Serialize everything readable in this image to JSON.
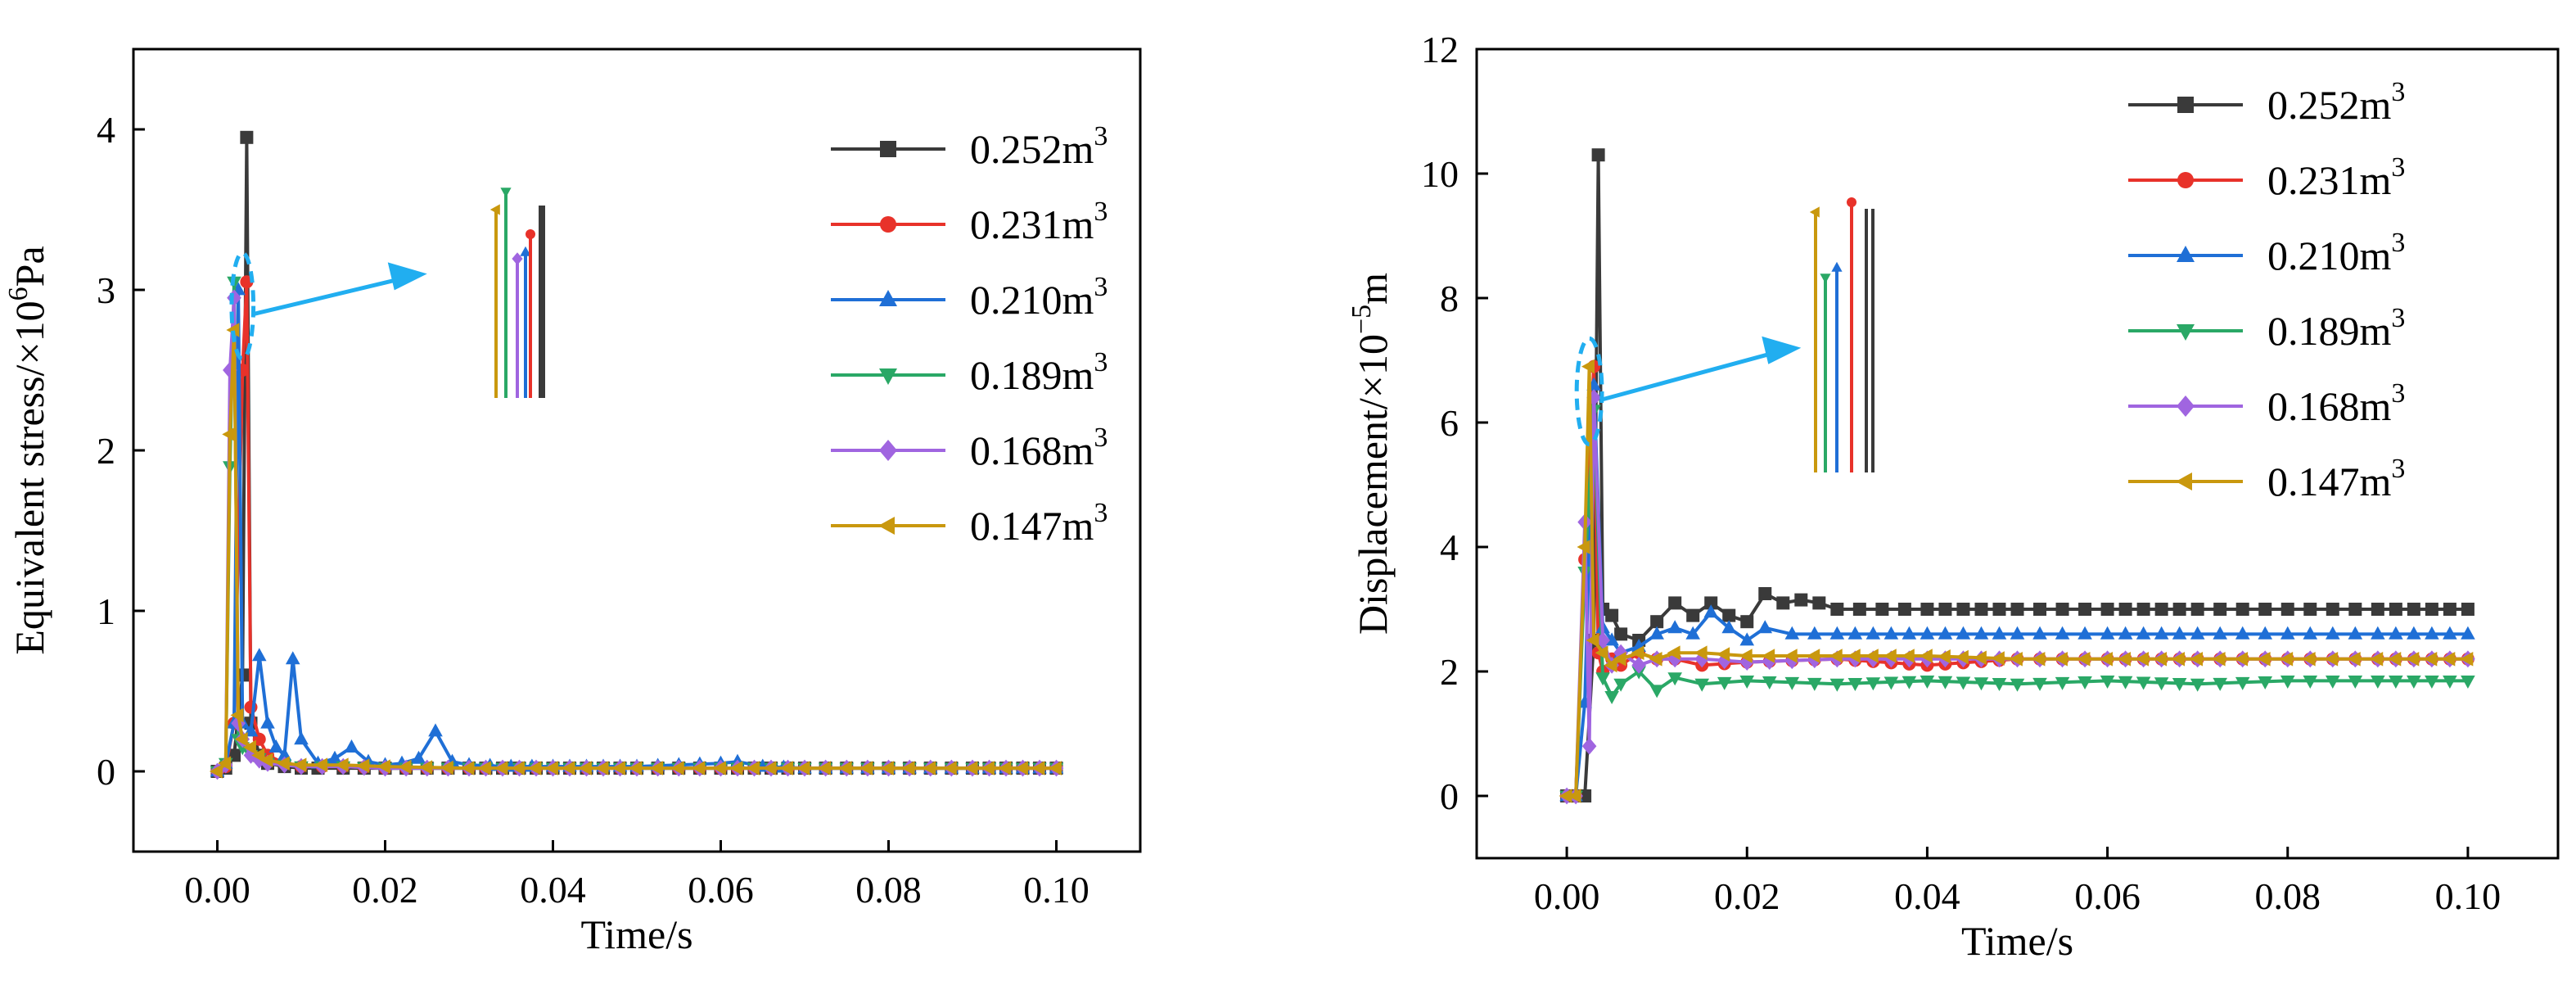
{
  "chart_data": [
    {
      "type": "line",
      "title": "",
      "xlabel": "Time/s",
      "ylabel_parts": [
        "Equivalent stress/×10",
        "6",
        "Pa"
      ],
      "xlim": [
        -0.01,
        0.11
      ],
      "ylim": [
        -0.5,
        4.5
      ],
      "xticks": [
        0.0,
        0.02,
        0.04,
        0.06,
        0.08,
        0.1
      ],
      "xtick_labels": [
        "0.00",
        "0.02",
        "0.04",
        "0.06",
        "0.08",
        "0.10"
      ],
      "yticks": [
        0,
        1,
        2,
        3,
        4
      ],
      "ytick_labels": [
        "0",
        "1",
        "2",
        "3",
        "4"
      ],
      "legend_position": "top-right",
      "inset": {
        "center": [
          0.003,
          2.9
        ],
        "radius": [
          0.0013,
          0.33
        ],
        "arrow_to": [
          0.025,
          3.1
        ]
      },
      "series": [
        {
          "name": "0.252m",
          "sup": "3",
          "color": "#3a3a3a",
          "marker": "square",
          "x": [
            0.0,
            0.001,
            0.002,
            0.003,
            0.0035,
            0.004,
            0.005,
            0.006,
            0.008,
            0.01,
            0.012,
            0.015,
            0.02,
            0.025,
            0.03,
            0.04,
            0.05,
            0.06,
            0.07,
            0.08,
            0.09,
            0.1
          ],
          "y": [
            0.0,
            0.02,
            0.1,
            0.6,
            3.95,
            0.3,
            0.1,
            0.05,
            0.03,
            0.02,
            0.02,
            0.02,
            0.02,
            0.02,
            0.02,
            0.02,
            0.02,
            0.02,
            0.02,
            0.02,
            0.02,
            0.02
          ]
        },
        {
          "name": "0.231m",
          "sup": "3",
          "color": "#e8322a",
          "marker": "circle",
          "x": [
            0.0,
            0.001,
            0.002,
            0.003,
            0.0035,
            0.004,
            0.005,
            0.006,
            0.008,
            0.01,
            0.015,
            0.02,
            0.03,
            0.04,
            0.05,
            0.06,
            0.07,
            0.08,
            0.09,
            0.1
          ],
          "y": [
            0.0,
            0.03,
            0.3,
            2.5,
            3.05,
            0.4,
            0.2,
            0.1,
            0.05,
            0.03,
            0.03,
            0.02,
            0.02,
            0.02,
            0.02,
            0.02,
            0.02,
            0.02,
            0.02,
            0.02
          ]
        },
        {
          "name": "0.210m",
          "sup": "3",
          "color": "#1f6fd6",
          "marker": "triangle-up",
          "x": [
            0.0,
            0.001,
            0.002,
            0.0025,
            0.003,
            0.004,
            0.005,
            0.006,
            0.007,
            0.008,
            0.009,
            0.01,
            0.012,
            0.014,
            0.016,
            0.018,
            0.02,
            0.022,
            0.024,
            0.026,
            0.028,
            0.03,
            0.035,
            0.04,
            0.05,
            0.06,
            0.062,
            0.065,
            0.07,
            0.08,
            0.09,
            0.1
          ],
          "y": [
            0.0,
            0.05,
            0.3,
            3.0,
            0.3,
            0.25,
            0.72,
            0.3,
            0.15,
            0.1,
            0.7,
            0.2,
            0.05,
            0.08,
            0.15,
            0.06,
            0.04,
            0.05,
            0.08,
            0.25,
            0.06,
            0.04,
            0.03,
            0.03,
            0.03,
            0.05,
            0.06,
            0.03,
            0.02,
            0.02,
            0.02,
            0.02
          ]
        },
        {
          "name": "0.189m",
          "sup": "3",
          "color": "#2aa866",
          "marker": "triangle-down",
          "x": [
            0.0,
            0.001,
            0.0015,
            0.002,
            0.0025,
            0.003,
            0.004,
            0.005,
            0.006,
            0.008,
            0.01,
            0.015,
            0.02,
            0.03,
            0.04,
            0.05,
            0.06,
            0.07,
            0.08,
            0.09,
            0.1
          ],
          "y": [
            0.0,
            0.05,
            1.9,
            3.05,
            0.2,
            0.15,
            0.1,
            0.08,
            0.05,
            0.04,
            0.03,
            0.03,
            0.02,
            0.02,
            0.02,
            0.02,
            0.02,
            0.02,
            0.02,
            0.02,
            0.02
          ]
        },
        {
          "name": "0.168m",
          "sup": "3",
          "color": "#a065e0",
          "marker": "diamond",
          "x": [
            0.0,
            0.001,
            0.0015,
            0.002,
            0.0025,
            0.003,
            0.004,
            0.005,
            0.006,
            0.008,
            0.01,
            0.015,
            0.02,
            0.03,
            0.04,
            0.05,
            0.06,
            0.07,
            0.08,
            0.09,
            0.1
          ],
          "y": [
            0.0,
            0.04,
            2.5,
            2.95,
            0.3,
            0.2,
            0.1,
            0.07,
            0.05,
            0.04,
            0.03,
            0.03,
            0.02,
            0.02,
            0.02,
            0.02,
            0.02,
            0.02,
            0.02,
            0.02,
            0.02
          ]
        },
        {
          "name": "0.147m",
          "sup": "3",
          "color": "#c9980e",
          "marker": "triangle-left",
          "x": [
            0.0,
            0.001,
            0.0015,
            0.002,
            0.0025,
            0.003,
            0.004,
            0.005,
            0.006,
            0.008,
            0.01,
            0.015,
            0.02,
            0.03,
            0.04,
            0.05,
            0.06,
            0.07,
            0.08,
            0.09,
            0.1
          ],
          "y": [
            0.0,
            0.05,
            2.1,
            2.75,
            0.35,
            0.2,
            0.15,
            0.1,
            0.07,
            0.05,
            0.04,
            0.04,
            0.03,
            0.02,
            0.02,
            0.02,
            0.02,
            0.02,
            0.02,
            0.02,
            0.02
          ]
        }
      ]
    },
    {
      "type": "line",
      "title": "",
      "xlabel": "Time/s",
      "ylabel_parts": [
        "Displacement/×10",
        "−5",
        "m"
      ],
      "xlim": [
        -0.01,
        0.11
      ],
      "ylim": [
        -1,
        12
      ],
      "xticks": [
        0.0,
        0.02,
        0.04,
        0.06,
        0.08,
        0.1
      ],
      "xtick_labels": [
        "0.00",
        "0.02",
        "0.04",
        "0.06",
        "0.08",
        "0.10"
      ],
      "yticks": [
        0,
        2,
        4,
        6,
        8,
        10,
        12
      ],
      "ytick_labels": [
        "0",
        "2",
        "4",
        "6",
        "8",
        "10",
        "12"
      ],
      "legend_position": "top-right",
      "inset": {
        "center": [
          0.0025,
          6.5
        ],
        "radius": [
          0.0014,
          0.85
        ],
        "arrow_to": [
          0.026,
          7.2
        ]
      },
      "series": [
        {
          "name": "0.252m",
          "sup": "3",
          "color": "#3a3a3a",
          "marker": "square",
          "x": [
            0.0,
            0.001,
            0.002,
            0.003,
            0.0035,
            0.004,
            0.005,
            0.006,
            0.008,
            0.01,
            0.012,
            0.014,
            0.016,
            0.018,
            0.02,
            0.022,
            0.024,
            0.026,
            0.028,
            0.03,
            0.035,
            0.04,
            0.05,
            0.06,
            0.07,
            0.08,
            0.09,
            0.1
          ],
          "y": [
            0.0,
            0.0,
            0.0,
            2.5,
            10.3,
            3.0,
            2.9,
            2.6,
            2.5,
            2.8,
            3.1,
            2.9,
            3.1,
            2.9,
            2.8,
            3.25,
            3.1,
            3.15,
            3.1,
            3.0,
            3.0,
            3.0,
            3.0,
            3.0,
            3.0,
            3.0,
            3.0,
            3.0
          ]
        },
        {
          "name": "0.231m",
          "sup": "3",
          "color": "#e8322a",
          "marker": "circle",
          "x": [
            0.0,
            0.001,
            0.002,
            0.003,
            0.0035,
            0.004,
            0.005,
            0.006,
            0.008,
            0.01,
            0.012,
            0.015,
            0.02,
            0.03,
            0.04,
            0.05,
            0.06,
            0.07,
            0.08,
            0.09,
            0.1
          ],
          "y": [
            0.0,
            0.0,
            3.8,
            6.9,
            2.3,
            2.0,
            2.2,
            2.1,
            2.3,
            2.2,
            2.2,
            2.1,
            2.15,
            2.2,
            2.1,
            2.2,
            2.2,
            2.2,
            2.2,
            2.2,
            2.2
          ]
        },
        {
          "name": "0.210m",
          "sup": "3",
          "color": "#1f6fd6",
          "marker": "triangle-up",
          "x": [
            0.0,
            0.001,
            0.002,
            0.003,
            0.004,
            0.005,
            0.006,
            0.008,
            0.01,
            0.012,
            0.014,
            0.016,
            0.018,
            0.02,
            0.022,
            0.025,
            0.03,
            0.04,
            0.05,
            0.06,
            0.07,
            0.08,
            0.09,
            0.1
          ],
          "y": [
            0.0,
            0.0,
            1.5,
            6.6,
            2.7,
            2.5,
            2.3,
            2.4,
            2.6,
            2.7,
            2.6,
            2.95,
            2.7,
            2.5,
            2.7,
            2.6,
            2.6,
            2.6,
            2.6,
            2.6,
            2.6,
            2.6,
            2.6,
            2.6
          ]
        },
        {
          "name": "0.189m",
          "sup": "3",
          "color": "#2aa866",
          "marker": "triangle-down",
          "x": [
            0.0,
            0.001,
            0.002,
            0.003,
            0.004,
            0.005,
            0.006,
            0.008,
            0.01,
            0.012,
            0.015,
            0.02,
            0.03,
            0.04,
            0.05,
            0.06,
            0.07,
            0.08,
            0.09,
            0.1
          ],
          "y": [
            0.0,
            0.0,
            3.6,
            6.2,
            1.9,
            1.6,
            1.8,
            2.0,
            1.7,
            1.9,
            1.8,
            1.85,
            1.8,
            1.85,
            1.8,
            1.85,
            1.8,
            1.85,
            1.85,
            1.85
          ]
        },
        {
          "name": "0.168m",
          "sup": "3",
          "color": "#a065e0",
          "marker": "diamond",
          "x": [
            0.0,
            0.001,
            0.002,
            0.0025,
            0.003,
            0.004,
            0.005,
            0.006,
            0.008,
            0.01,
            0.012,
            0.015,
            0.02,
            0.03,
            0.04,
            0.05,
            0.06,
            0.07,
            0.08,
            0.09,
            0.1
          ],
          "y": [
            0.0,
            0.0,
            4.4,
            0.8,
            6.4,
            2.5,
            2.1,
            2.3,
            2.1,
            2.2,
            2.2,
            2.2,
            2.15,
            2.2,
            2.2,
            2.2,
            2.2,
            2.2,
            2.2,
            2.2,
            2.2
          ]
        },
        {
          "name": "0.147m",
          "sup": "3",
          "color": "#c9980e",
          "marker": "triangle-left",
          "x": [
            0.0,
            0.001,
            0.002,
            0.0025,
            0.003,
            0.004,
            0.005,
            0.006,
            0.008,
            0.01,
            0.012,
            0.015,
            0.02,
            0.03,
            0.04,
            0.05,
            0.06,
            0.07,
            0.08,
            0.09,
            0.1
          ],
          "y": [
            0.0,
            0.0,
            4.0,
            6.9,
            2.5,
            2.3,
            2.1,
            2.2,
            2.3,
            2.2,
            2.3,
            2.3,
            2.25,
            2.25,
            2.25,
            2.2,
            2.2,
            2.2,
            2.2,
            2.2,
            2.2
          ]
        }
      ]
    }
  ]
}
